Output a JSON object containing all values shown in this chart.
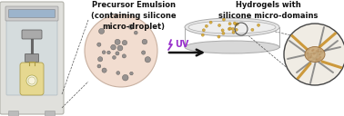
{
  "title_left": "Precursor Emulsion\n(containing silicone\nmicro-droplet)",
  "title_right": "Hydrogels with\nsilicone micro-domains",
  "uv_label": "UV",
  "bg_color": "#ffffff",
  "cabinet_face": "#e0e0dc",
  "cabinet_edge": "#b0b0a8",
  "window_face": "#c8d8e0",
  "window_edge": "#8899aa",
  "sphere_color": "#f2ddd0",
  "sphere_edge": "#c8b0a0",
  "dot_color": "#808080",
  "petri_top_face": "#e8e8e8",
  "petri_side_face": "#d8d8d8",
  "petri_edge": "#aaaaaa",
  "dot_gold": "#d4a830",
  "circle_zoom_edge": "#444444",
  "arrow_color": "#111111",
  "uv_color": "#9932CC",
  "dashed_color": "#555555",
  "text_color": "#111111",
  "polymer_blob_color": "#c8a878",
  "polymer_line_gray": "#707070",
  "polymer_line_gold": "#c8902a",
  "zoom_bg": "#f0ece4"
}
